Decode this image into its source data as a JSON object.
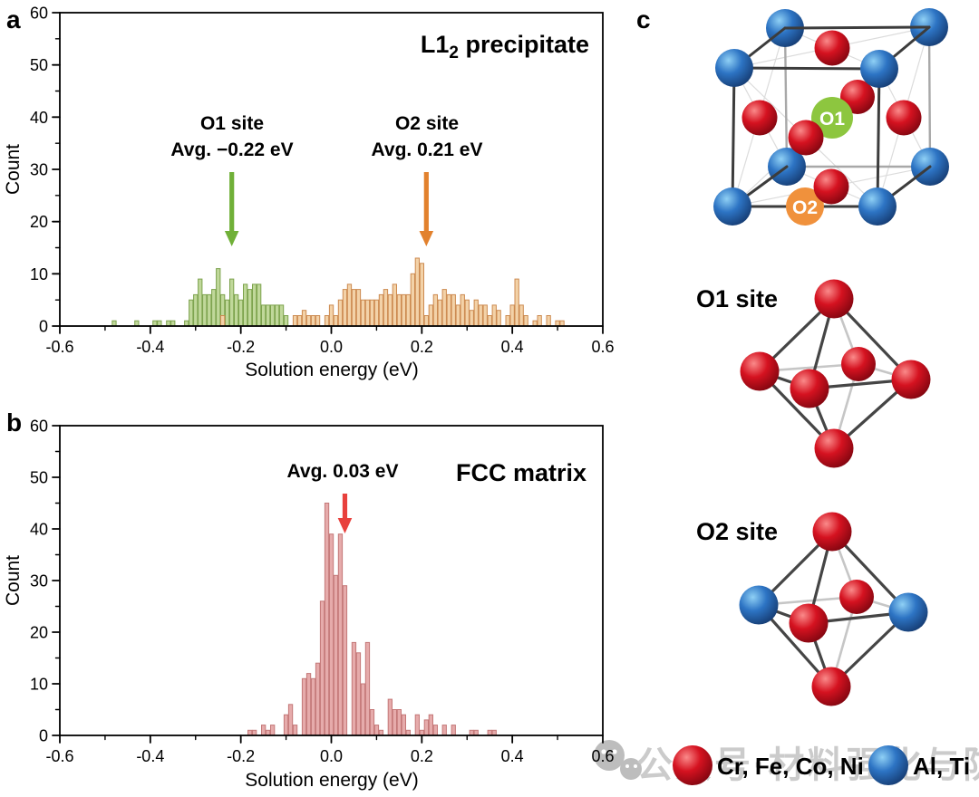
{
  "colors": {
    "o1_accent": "#70b038",
    "o2_accent": "#e2812d",
    "fcc_accent": "#e8403c",
    "green_bar_fill": "#c0d89a",
    "green_bar_edge": "#7ca24c",
    "orange_bar_fill": "#f3d2a8",
    "orange_bar_edge": "#cc8a50",
    "pink_bar_fill": "#e6abab",
    "pink_bar_edge": "#c47878",
    "o1_badge": "#8dc63f",
    "o2_badge": "#f0913c",
    "watermark_gray": "#cbcbcb"
  },
  "axis": {
    "xlabel": "Solution energy (eV)",
    "ylabel": "Count",
    "x_ticks": [
      "-0.6",
      "-0.4",
      "-0.2",
      "0.0",
      "0.2",
      "0.4",
      "0.6"
    ],
    "y_ticks": [
      "0",
      "10",
      "20",
      "30",
      "40",
      "50",
      "60"
    ]
  },
  "panel_a": {
    "label": "a",
    "title_pre": "L1",
    "title_sub": "2",
    "title_post": " precipitate",
    "ann_o1_line1": "O1 site",
    "ann_o1_line2": "Avg. −0.22 eV",
    "ann_o2_line1": "O2 site",
    "ann_o2_line2": "Avg. 0.21 eV"
  },
  "panel_b": {
    "label": "b",
    "title": "FCC matrix",
    "ann_avg": "Avg. 0.03 eV"
  },
  "panel_c": {
    "label": "c",
    "badge_o1": "O1",
    "badge_o2": "O2",
    "o1_title": "O1 site",
    "o2_title": "O2 site",
    "legend": [
      {
        "sphere": "red",
        "label": "Cr, Fe, Co, Ni"
      },
      {
        "sphere": "blue",
        "label": "Al, Ti"
      }
    ],
    "watermark_text": "公众号·材料强化与防护"
  },
  "chart_data": [
    {
      "type": "bar",
      "panel": "a",
      "title": "L12 precipitate",
      "xlabel": "Solution energy (eV)",
      "ylabel": "Count",
      "xlim": [
        -0.6,
        0.6
      ],
      "ylim": [
        0,
        60
      ],
      "bin_width_ev": 0.01,
      "grid": false,
      "series": [
        {
          "name": "O1 site",
          "avg_ev": -0.22,
          "avg_label": "Avg. −0.22 eV",
          "fill": "#c0d89a",
          "edge": "#7ca24c",
          "bins": [
            [
              -0.48,
              1
            ],
            [
              -0.43,
              1
            ],
            [
              -0.39,
              1
            ],
            [
              -0.38,
              1
            ],
            [
              -0.36,
              1
            ],
            [
              -0.35,
              1
            ],
            [
              -0.32,
              1
            ],
            [
              -0.31,
              5
            ],
            [
              -0.3,
              6
            ],
            [
              -0.29,
              9
            ],
            [
              -0.28,
              6
            ],
            [
              -0.27,
              6
            ],
            [
              -0.26,
              7
            ],
            [
              -0.25,
              11
            ],
            [
              -0.24,
              6
            ],
            [
              -0.23,
              5
            ],
            [
              -0.22,
              9
            ],
            [
              -0.21,
              6
            ],
            [
              -0.2,
              5
            ],
            [
              -0.19,
              8
            ],
            [
              -0.18,
              7
            ],
            [
              -0.17,
              8
            ],
            [
              -0.16,
              8
            ],
            [
              -0.15,
              4
            ],
            [
              -0.14,
              4
            ],
            [
              -0.13,
              4
            ],
            [
              -0.12,
              4
            ],
            [
              -0.11,
              4
            ],
            [
              -0.1,
              2
            ]
          ]
        },
        {
          "name": "O2 site",
          "avg_ev": 0.21,
          "avg_label": "Avg. 0.21 eV",
          "fill": "#f3d2a8",
          "edge": "#cc8a50",
          "bins": [
            [
              -0.24,
              2
            ],
            [
              -0.08,
              2
            ],
            [
              -0.07,
              2
            ],
            [
              -0.06,
              3
            ],
            [
              -0.05,
              2
            ],
            [
              -0.04,
              2
            ],
            [
              -0.03,
              2
            ],
            [
              -0.01,
              2
            ],
            [
              0.0,
              4
            ],
            [
              0.01,
              2
            ],
            [
              0.02,
              5
            ],
            [
              0.03,
              7
            ],
            [
              0.04,
              8
            ],
            [
              0.05,
              7
            ],
            [
              0.06,
              7
            ],
            [
              0.07,
              5
            ],
            [
              0.08,
              5
            ],
            [
              0.09,
              5
            ],
            [
              0.1,
              5
            ],
            [
              0.11,
              6
            ],
            [
              0.12,
              7
            ],
            [
              0.13,
              6
            ],
            [
              0.14,
              8
            ],
            [
              0.15,
              6
            ],
            [
              0.16,
              6
            ],
            [
              0.17,
              6
            ],
            [
              0.18,
              10
            ],
            [
              0.19,
              13
            ],
            [
              0.2,
              12
            ],
            [
              0.21,
              2
            ],
            [
              0.22,
              4
            ],
            [
              0.23,
              6
            ],
            [
              0.24,
              5
            ],
            [
              0.25,
              7
            ],
            [
              0.26,
              6
            ],
            [
              0.27,
              6
            ],
            [
              0.28,
              4
            ],
            [
              0.29,
              6
            ],
            [
              0.3,
              5
            ],
            [
              0.31,
              3
            ],
            [
              0.32,
              5
            ],
            [
              0.33,
              4
            ],
            [
              0.34,
              4
            ],
            [
              0.35,
              2
            ],
            [
              0.36,
              4
            ],
            [
              0.37,
              3
            ],
            [
              0.39,
              2
            ],
            [
              0.4,
              4
            ],
            [
              0.41,
              9
            ],
            [
              0.42,
              4
            ],
            [
              0.43,
              2
            ],
            [
              0.45,
              1
            ],
            [
              0.46,
              2
            ],
            [
              0.48,
              2
            ],
            [
              0.5,
              1
            ],
            [
              0.51,
              1
            ]
          ]
        }
      ]
    },
    {
      "type": "bar",
      "panel": "b",
      "title": "FCC matrix",
      "xlabel": "Solution energy (eV)",
      "ylabel": "Count",
      "xlim": [
        -0.6,
        0.6
      ],
      "ylim": [
        0,
        60
      ],
      "bin_width_ev": 0.01,
      "grid": false,
      "series": [
        {
          "name": "FCC matrix",
          "avg_ev": 0.03,
          "avg_label": "Avg. 0.03 eV",
          "fill": "#e6abab",
          "edge": "#c47878",
          "bins": [
            [
              -0.18,
              1
            ],
            [
              -0.17,
              1
            ],
            [
              -0.15,
              2
            ],
            [
              -0.14,
              1
            ],
            [
              -0.13,
              2
            ],
            [
              -0.1,
              4
            ],
            [
              -0.09,
              6
            ],
            [
              -0.08,
              2
            ],
            [
              -0.06,
              11
            ],
            [
              -0.05,
              12
            ],
            [
              -0.04,
              11
            ],
            [
              -0.03,
              14
            ],
            [
              -0.02,
              26
            ],
            [
              -0.01,
              45
            ],
            [
              0.0,
              39
            ],
            [
              0.01,
              31
            ],
            [
              0.02,
              39
            ],
            [
              0.03,
              29
            ],
            [
              0.05,
              18
            ],
            [
              0.06,
              16
            ],
            [
              0.07,
              10
            ],
            [
              0.08,
              18
            ],
            [
              0.09,
              5
            ],
            [
              0.1,
              2
            ],
            [
              0.11,
              1
            ],
            [
              0.13,
              7
            ],
            [
              0.14,
              5
            ],
            [
              0.15,
              5
            ],
            [
              0.16,
              4
            ],
            [
              0.17,
              1
            ],
            [
              0.19,
              4
            ],
            [
              0.2,
              1
            ],
            [
              0.21,
              3
            ],
            [
              0.22,
              4
            ],
            [
              0.23,
              2
            ],
            [
              0.25,
              2
            ],
            [
              0.27,
              2
            ],
            [
              0.31,
              1
            ],
            [
              0.32,
              1
            ],
            [
              0.35,
              1
            ],
            [
              0.36,
              1
            ]
          ]
        }
      ]
    }
  ]
}
